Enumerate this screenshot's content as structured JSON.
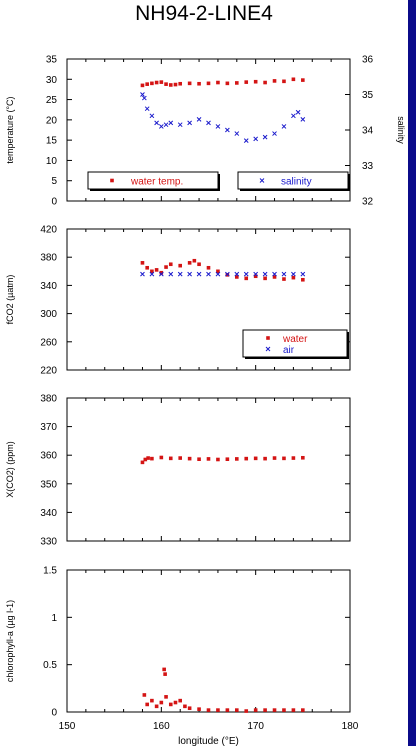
{
  "title": "NH94-2-LINE4",
  "colors": {
    "red": "#d41414",
    "blue": "#1a1acc",
    "frame": "#000000",
    "sidebar": "#0b0b8a"
  },
  "chart_data": [
    {
      "type": "scatter",
      "ylabel": "temperature (°C)",
      "y2label": "salinity",
      "xlim": [
        150,
        180
      ],
      "ylim": [
        0,
        35
      ],
      "y2lim": [
        32,
        36
      ],
      "yticks": [
        "0",
        "5",
        "10",
        "15",
        "20",
        "25",
        "30",
        "35"
      ],
      "y2ticks": [
        "32",
        "33",
        "34",
        "35",
        "36"
      ],
      "legend": [
        {
          "label": "water temp.",
          "color": "#d41414",
          "marker": "square"
        },
        {
          "label": "salinity",
          "color": "#1a1acc",
          "marker": "x"
        }
      ],
      "series": [
        {
          "name": "water temp.",
          "axis": "left",
          "color": "#d41414",
          "marker": "square",
          "points": [
            [
              158,
              28.5
            ],
            [
              158.5,
              28.8
            ],
            [
              159,
              29.0
            ],
            [
              159.5,
              29.2
            ],
            [
              160,
              29.3
            ],
            [
              160.5,
              28.8
            ],
            [
              161,
              28.6
            ],
            [
              161.5,
              28.7
            ],
            [
              162,
              28.9
            ],
            [
              163,
              29.0
            ],
            [
              164,
              28.9
            ],
            [
              165,
              29.0
            ],
            [
              166,
              29.2
            ],
            [
              167,
              29.0
            ],
            [
              168,
              29.1
            ],
            [
              169,
              29.3
            ],
            [
              170,
              29.4
            ],
            [
              171,
              29.2
            ],
            [
              172,
              29.6
            ],
            [
              173,
              29.5
            ],
            [
              174,
              30.0
            ],
            [
              175,
              29.8
            ]
          ]
        },
        {
          "name": "salinity",
          "axis": "right",
          "color": "#1a1acc",
          "marker": "x",
          "points": [
            [
              158,
              35.0
            ],
            [
              158.2,
              34.9
            ],
            [
              158.5,
              34.6
            ],
            [
              159,
              34.4
            ],
            [
              159.5,
              34.2
            ],
            [
              160,
              34.1
            ],
            [
              160.5,
              34.15
            ],
            [
              161,
              34.2
            ],
            [
              162,
              34.15
            ],
            [
              163,
              34.2
            ],
            [
              164,
              34.3
            ],
            [
              165,
              34.2
            ],
            [
              166,
              34.1
            ],
            [
              167,
              34.0
            ],
            [
              168,
              33.9
            ],
            [
              169,
              33.7
            ],
            [
              170,
              33.75
            ],
            [
              171,
              33.8
            ],
            [
              172,
              33.9
            ],
            [
              173,
              34.1
            ],
            [
              174,
              34.4
            ],
            [
              174.5,
              34.5
            ],
            [
              175,
              34.3
            ]
          ]
        }
      ]
    },
    {
      "type": "scatter",
      "ylabel": "fCO2 (µatm)",
      "xlim": [
        150,
        180
      ],
      "ylim": [
        220,
        420
      ],
      "yticks": [
        "220",
        "260",
        "300",
        "340",
        "380",
        "420"
      ],
      "legend": [
        {
          "label": "water",
          "color": "#d41414",
          "marker": "square"
        },
        {
          "label": "air",
          "color": "#1a1acc",
          "marker": "x"
        }
      ],
      "series": [
        {
          "name": "water",
          "color": "#d41414",
          "marker": "square",
          "points": [
            [
              158,
              372
            ],
            [
              158.5,
              365
            ],
            [
              159,
              360
            ],
            [
              159.5,
              362
            ],
            [
              160,
              358
            ],
            [
              160.5,
              366
            ],
            [
              161,
              370
            ],
            [
              162,
              368
            ],
            [
              163,
              372
            ],
            [
              163.5,
              375
            ],
            [
              164,
              370
            ],
            [
              165,
              365
            ],
            [
              166,
              360
            ],
            [
              167,
              355
            ],
            [
              168,
              352
            ],
            [
              169,
              350
            ],
            [
              170,
              353
            ],
            [
              171,
              350
            ],
            [
              172,
              352
            ],
            [
              173,
              349
            ],
            [
              174,
              351
            ],
            [
              175,
              348
            ]
          ]
        },
        {
          "name": "air",
          "color": "#1a1acc",
          "marker": "x",
          "points": [
            [
              158,
              356
            ],
            [
              159,
              356
            ],
            [
              160,
              356
            ],
            [
              161,
              356
            ],
            [
              162,
              356
            ],
            [
              163,
              356
            ],
            [
              164,
              356
            ],
            [
              165,
              356
            ],
            [
              166,
              356
            ],
            [
              167,
              356
            ],
            [
              168,
              356
            ],
            [
              169,
              356
            ],
            [
              170,
              356
            ],
            [
              171,
              356
            ],
            [
              172,
              356
            ],
            [
              173,
              356
            ],
            [
              174,
              356
            ],
            [
              175,
              356
            ]
          ]
        }
      ]
    },
    {
      "type": "scatter",
      "ylabel": "X(CO2) (ppm)",
      "xlim": [
        150,
        180
      ],
      "ylim": [
        330,
        380
      ],
      "yticks": [
        "330",
        "340",
        "350",
        "360",
        "370",
        "380"
      ],
      "series": [
        {
          "name": "",
          "color": "#d41414",
          "marker": "square",
          "points": [
            [
              158,
              357.5
            ],
            [
              158.3,
              358.5
            ],
            [
              158.6,
              359
            ],
            [
              159,
              358.8
            ],
            [
              160,
              359.2
            ],
            [
              161,
              358.9
            ],
            [
              162,
              359
            ],
            [
              163,
              358.8
            ],
            [
              164,
              358.6
            ],
            [
              165,
              358.7
            ],
            [
              166,
              358.5
            ],
            [
              167,
              358.6
            ],
            [
              168,
              358.7
            ],
            [
              169,
              358.8
            ],
            [
              170,
              358.9
            ],
            [
              171,
              358.8
            ],
            [
              172,
              359
            ],
            [
              173,
              358.9
            ],
            [
              174,
              359
            ],
            [
              175,
              359.1
            ]
          ]
        }
      ]
    },
    {
      "type": "scatter",
      "ylabel": "chlorophyll-a (µg l-1)",
      "xlabel": "longitude (°E)",
      "xlim": [
        150,
        180
      ],
      "ylim": [
        0,
        1.5
      ],
      "yticks": [
        "0",
        "0.5",
        "1",
        "1.5"
      ],
      "xticks": [
        "150",
        "160",
        "170",
        "180"
      ],
      "series": [
        {
          "name": "",
          "color": "#d41414",
          "marker": "square",
          "points": [
            [
              158.2,
              0.18
            ],
            [
              158.5,
              0.08
            ],
            [
              159,
              0.12
            ],
            [
              159.5,
              0.06
            ],
            [
              160,
              0.1
            ],
            [
              160.3,
              0.45
            ],
            [
              160.4,
              0.4
            ],
            [
              160.5,
              0.16
            ],
            [
              161,
              0.08
            ],
            [
              161.5,
              0.1
            ],
            [
              162,
              0.12
            ],
            [
              162.5,
              0.06
            ],
            [
              163,
              0.04
            ],
            [
              164,
              0.03
            ],
            [
              165,
              0.02
            ],
            [
              166,
              0.02
            ],
            [
              167,
              0.02
            ],
            [
              168,
              0.02
            ],
            [
              169,
              0.01
            ],
            [
              170,
              0.02
            ],
            [
              171,
              0.02
            ],
            [
              172,
              0.02
            ],
            [
              173,
              0.02
            ],
            [
              174,
              0.02
            ],
            [
              175,
              0.02
            ]
          ]
        }
      ]
    }
  ]
}
